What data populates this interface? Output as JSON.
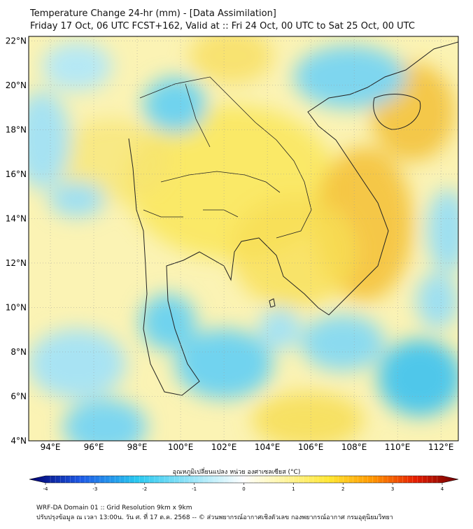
{
  "title": {
    "line1": "Temperature Change 24-hr (mm) - [Data Assimilation]",
    "line2": "Friday 17 Oct, 06 UTC FCST+162, Valid at :: Fri 24 Oct, 00 UTC to Sat 25 Oct, 00 UTC"
  },
  "map": {
    "lat_labels": [
      "22°N",
      "20°N",
      "18°N",
      "16°N",
      "14°N",
      "12°N",
      "10°N",
      "8°N",
      "6°N",
      "4°N"
    ],
    "lon_labels": [
      "94°E",
      "96°E",
      "98°E",
      "100°E",
      "102°E",
      "104°E",
      "106°E",
      "108°E",
      "110°E",
      "112°E"
    ],
    "lat_range": [
      4,
      22.2
    ],
    "lon_range": [
      93,
      112.8
    ]
  },
  "colorbar": {
    "label": "อุณหภูมิเปลี่ยนแปลง หน่วย องศาเซลเซียส (°C)",
    "min": -4,
    "max": 4,
    "ticks": [
      "-4",
      "-3",
      "-2",
      "-1",
      "0",
      "1",
      "2",
      "3",
      "4"
    ],
    "colors": {
      "dark_blue": "#00006e",
      "blue": "#1e5ae6",
      "cyan": "#28c8f0",
      "light_cyan": "#bceefb",
      "white": "#ffffff",
      "light_yellow": "#fff7b0",
      "yellow": "#ffe630",
      "orange": "#ff9600",
      "red": "#e61e00",
      "dark_red": "#6e0000"
    }
  },
  "footer": {
    "line1": "WRF-DA Domain 01 :: Grid Resolution 9km x 9km",
    "line2": "ปรับปรุงข้อมูล ณ เวลา 13:00น. วัน ศ. ที่ 17 ต.ค. 2568 -- © ส่วนพยากรณ์อากาศเชิงตัวเลข กองพยากรณ์อากาศ กรมอุตุนิยมวิทยา"
  }
}
